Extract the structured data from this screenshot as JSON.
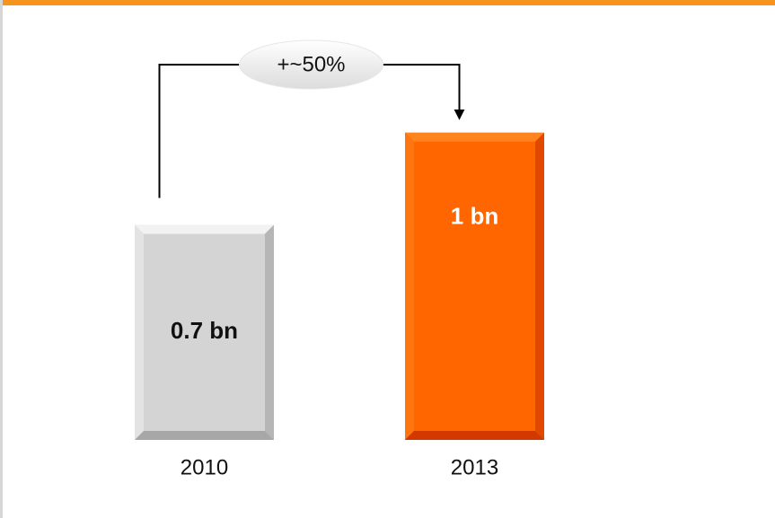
{
  "colors": {
    "accent": "#f7941d",
    "bar_2010": "#d4d4d4",
    "bar_2013": "#ff6600",
    "label_dark": "#111111",
    "label_light": "#ffffff"
  },
  "chart_data": {
    "type": "bar",
    "categories": [
      "2010",
      "2013"
    ],
    "values": [
      0.7,
      1.0
    ],
    "value_labels": [
      "0.7 bn",
      "1 bn"
    ],
    "units": "bn",
    "ylim": [
      0,
      1.35
    ],
    "grid": false,
    "annotation": {
      "text": "+~50%",
      "from": "2010",
      "to": "2013"
    }
  }
}
